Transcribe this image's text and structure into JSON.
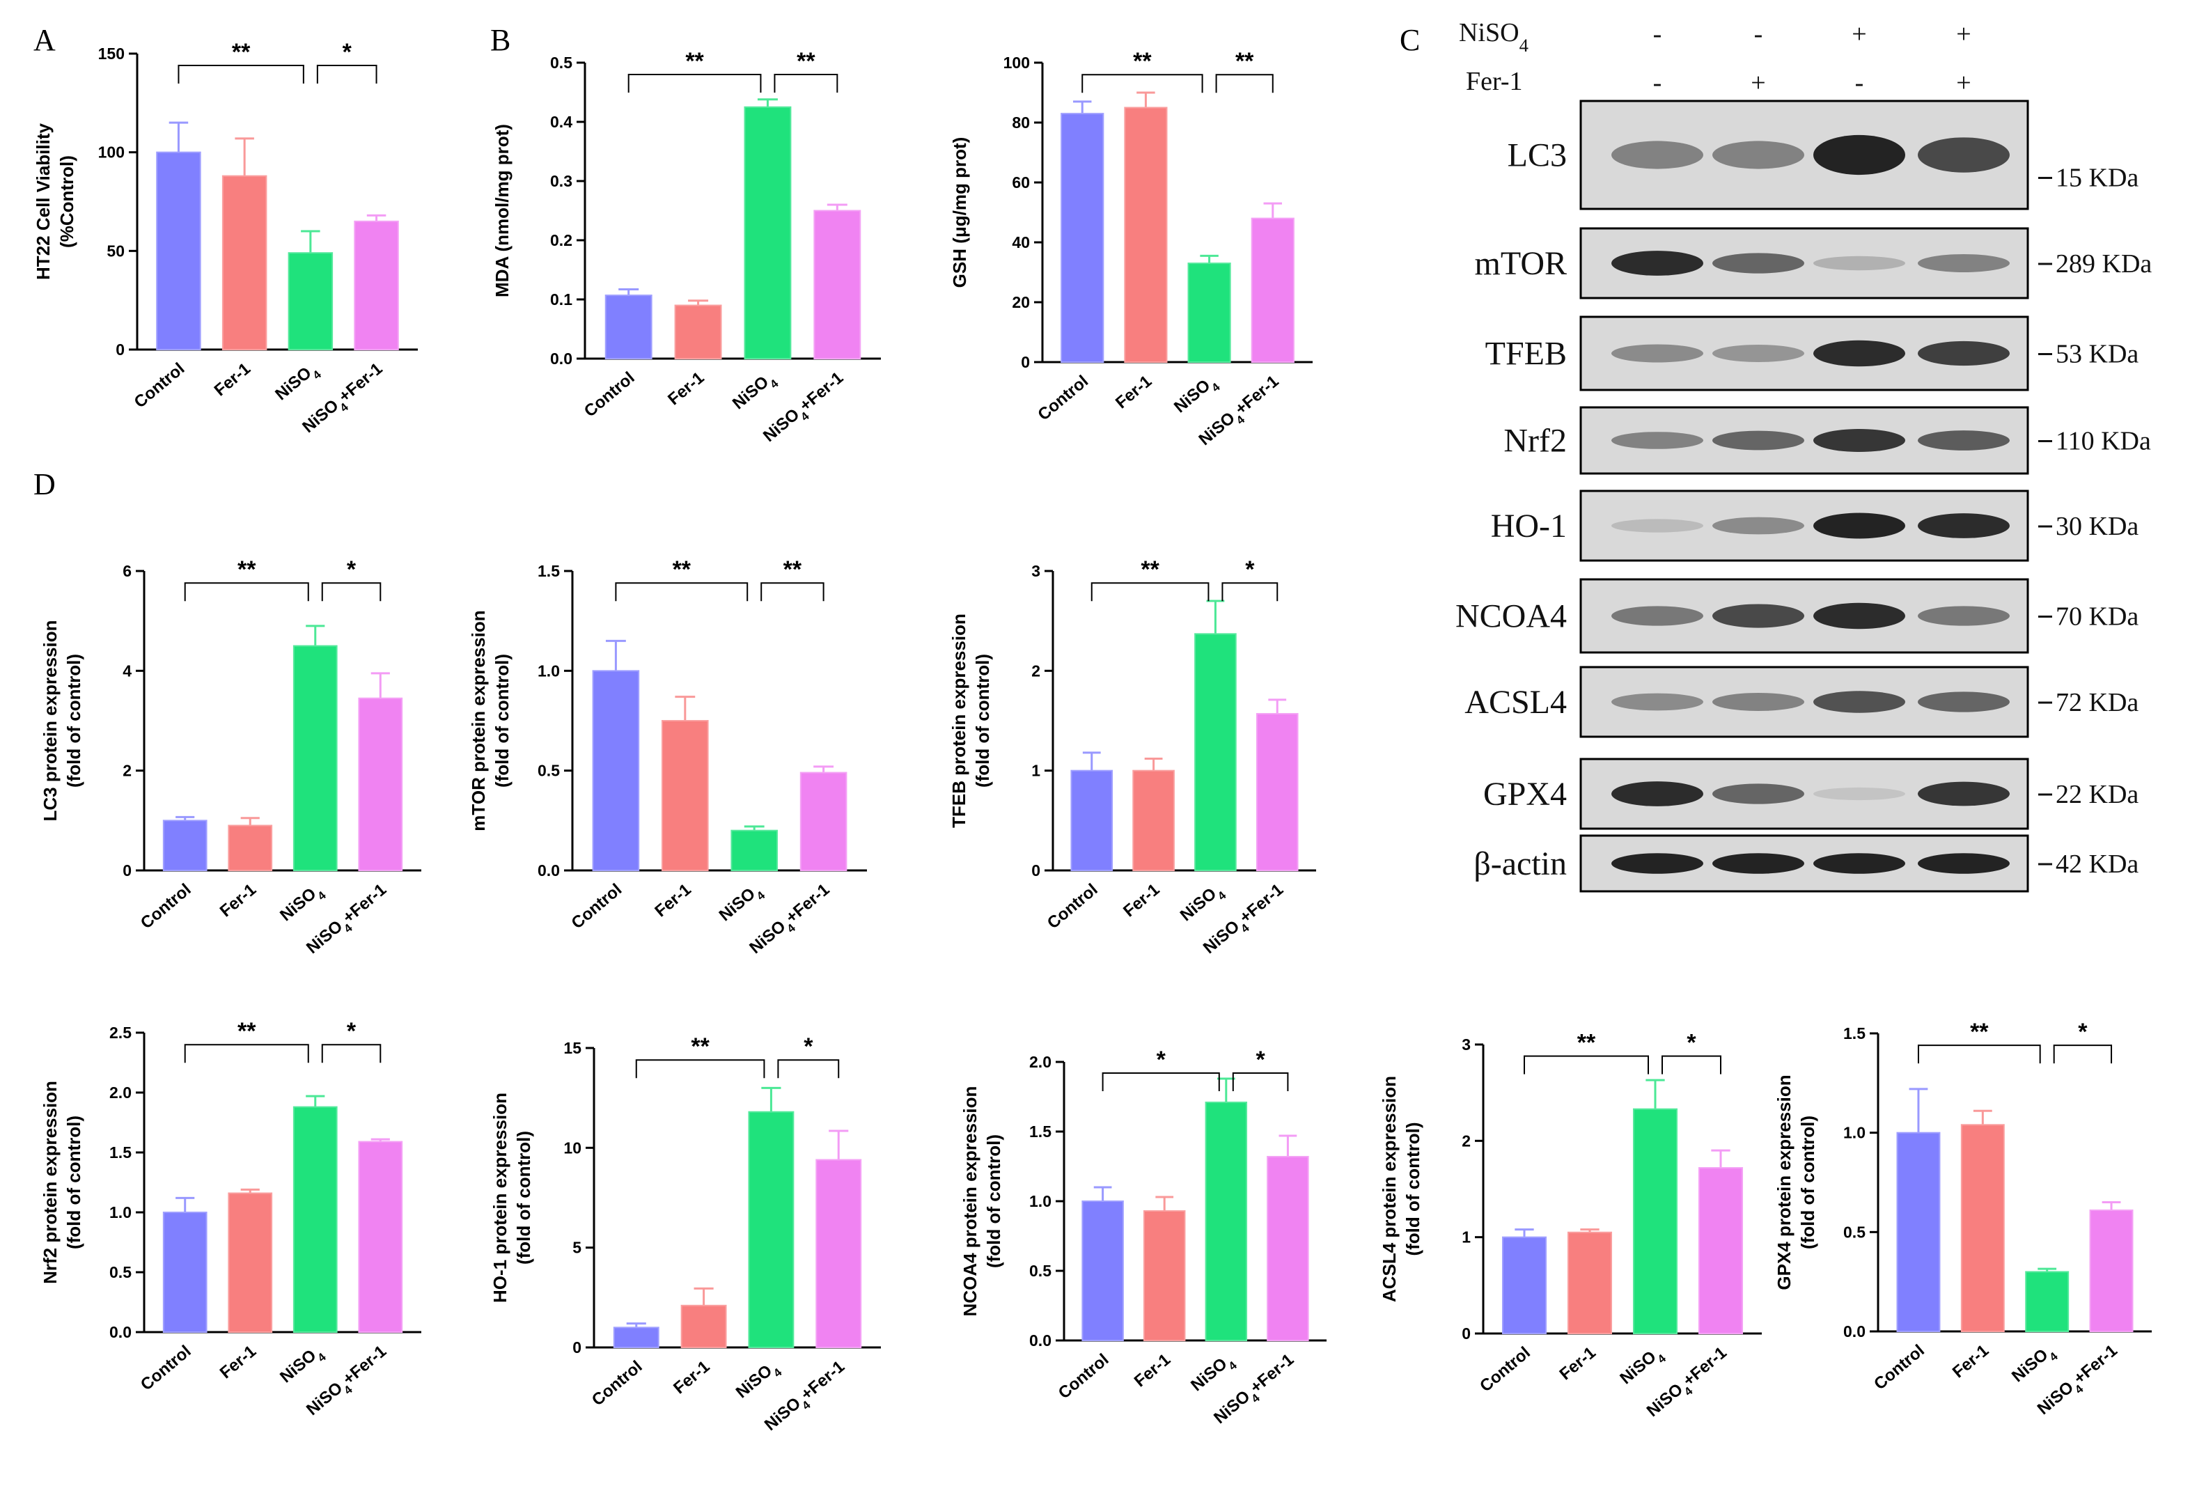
{
  "panel_labels": {
    "A": "A",
    "B": "B",
    "C": "C",
    "D": "D"
  },
  "colors": {
    "Control": "#8080ff",
    "Fer-1": "#f87f7f",
    "NiSO4": "#1fe27c",
    "NiSO4+Fer-1": "#f083f2"
  },
  "chart_data": [
    {
      "id": "viability",
      "type": "bar",
      "ylabel": [
        "HT22 Cell Viability",
        "(%Control)"
      ],
      "categories": [
        "Control",
        "Fer-1",
        "NiSO4",
        "NiSO4+Fer-1"
      ],
      "values": [
        100,
        88,
        49,
        65
      ],
      "errors": [
        15,
        19,
        11,
        3
      ],
      "ylim": [
        0,
        150
      ],
      "yticks": [
        "0",
        "50",
        "100",
        "150"
      ],
      "sig": [
        {
          "from": 0,
          "to": 2,
          "text": "**"
        },
        {
          "from": 2,
          "to": 3,
          "text": "*"
        }
      ]
    },
    {
      "id": "mda",
      "type": "bar",
      "ylabel": [
        "MDA (nmol/mg prot)"
      ],
      "categories": [
        "Control",
        "Fer-1",
        "NiSO4",
        "NiSO4+Fer-1"
      ],
      "values": [
        0.107,
        0.09,
        0.425,
        0.25
      ],
      "errors": [
        0.01,
        0.008,
        0.013,
        0.01
      ],
      "ylim": [
        0,
        0.5
      ],
      "yticks": [
        "0.0",
        "0.1",
        "0.2",
        "0.3",
        "0.4",
        "0.5"
      ],
      "sig": [
        {
          "from": 0,
          "to": 2,
          "text": "**"
        },
        {
          "from": 2,
          "to": 3,
          "text": "**"
        }
      ]
    },
    {
      "id": "gsh",
      "type": "bar",
      "ylabel": [
        "GSH (μg/mg prot)"
      ],
      "categories": [
        "Control",
        "Fer-1",
        "NiSO4",
        "NiSO4+Fer-1"
      ],
      "values": [
        83,
        85,
        33,
        48
      ],
      "errors": [
        4,
        5,
        2.5,
        5
      ],
      "ylim": [
        0,
        100
      ],
      "yticks": [
        "0",
        "20",
        "40",
        "60",
        "80",
        "100"
      ],
      "sig": [
        {
          "from": 0,
          "to": 2,
          "text": "**"
        },
        {
          "from": 2,
          "to": 3,
          "text": "**"
        }
      ]
    },
    {
      "id": "lc3",
      "type": "bar",
      "ylabel": [
        "LC3 protein expression",
        "(fold of control)"
      ],
      "categories": [
        "Control",
        "Fer-1",
        "NiSO4",
        "NiSO4+Fer-1"
      ],
      "values": [
        1.0,
        0.9,
        4.5,
        3.45
      ],
      "errors": [
        0.07,
        0.15,
        0.4,
        0.5
      ],
      "ylim": [
        0,
        6
      ],
      "yticks": [
        "0",
        "2",
        "4",
        "6"
      ],
      "sig": [
        {
          "from": 0,
          "to": 2,
          "text": "**"
        },
        {
          "from": 2,
          "to": 3,
          "text": "*"
        }
      ]
    },
    {
      "id": "mtor",
      "type": "bar",
      "ylabel": [
        "mTOR protein expression",
        "(fold of control)"
      ],
      "categories": [
        "Control",
        "Fer-1",
        "NiSO4",
        "NiSO4+Fer-1"
      ],
      "values": [
        1.0,
        0.75,
        0.2,
        0.49
      ],
      "errors": [
        0.15,
        0.12,
        0.02,
        0.03
      ],
      "ylim": [
        0,
        1.5
      ],
      "yticks": [
        "0.0",
        "0.5",
        "1.0",
        "1.5"
      ],
      "sig": [
        {
          "from": 0,
          "to": 2,
          "text": "**"
        },
        {
          "from": 2,
          "to": 3,
          "text": "**"
        }
      ]
    },
    {
      "id": "tfeb",
      "type": "bar",
      "ylabel": [
        "TFEB protein expression",
        "(fold of control)"
      ],
      "categories": [
        "Control",
        "Fer-1",
        "NiSO4",
        "NiSO4+Fer-1"
      ],
      "values": [
        1.0,
        1.0,
        2.37,
        1.57
      ],
      "errors": [
        0.18,
        0.12,
        0.33,
        0.14
      ],
      "ylim": [
        0,
        3
      ],
      "yticks": [
        "0",
        "1",
        "2",
        "3"
      ],
      "sig": [
        {
          "from": 0,
          "to": 2,
          "text": "**"
        },
        {
          "from": 2,
          "to": 3,
          "text": "*"
        }
      ]
    },
    {
      "id": "nrf2",
      "type": "bar",
      "ylabel": [
        "Nrf2 protein expression",
        "(fold of control)"
      ],
      "categories": [
        "Control",
        "Fer-1",
        "NiSO4",
        "NiSO4+Fer-1"
      ],
      "values": [
        1.0,
        1.16,
        1.88,
        1.59
      ],
      "errors": [
        0.12,
        0.03,
        0.09,
        0.02
      ],
      "ylim": [
        0,
        2.5
      ],
      "yticks": [
        "0.0",
        "0.5",
        "1.0",
        "1.5",
        "2.0",
        "2.5"
      ],
      "sig": [
        {
          "from": 0,
          "to": 2,
          "text": "**"
        },
        {
          "from": 2,
          "to": 3,
          "text": "*"
        }
      ]
    },
    {
      "id": "ho1",
      "type": "bar",
      "ylabel": [
        "HO-1 protein expression",
        "(fold of control)"
      ],
      "categories": [
        "Control",
        "Fer-1",
        "NiSO4",
        "NiSO4+Fer-1"
      ],
      "values": [
        1.0,
        2.1,
        11.8,
        9.4
      ],
      "errors": [
        0.2,
        0.85,
        1.2,
        1.45
      ],
      "ylim": [
        0,
        15
      ],
      "yticks": [
        "0",
        "5",
        "10",
        "15"
      ],
      "sig": [
        {
          "from": 0,
          "to": 2,
          "text": "**"
        },
        {
          "from": 2,
          "to": 3,
          "text": "*"
        }
      ]
    },
    {
      "id": "ncoa4",
      "type": "bar",
      "ylabel": [
        "NCOA4 protein expression",
        "(fold of control)"
      ],
      "categories": [
        "Control",
        "Fer-1",
        "NiSO4",
        "NiSO4+Fer-1"
      ],
      "values": [
        1.0,
        0.93,
        1.71,
        1.32
      ],
      "errors": [
        0.1,
        0.1,
        0.17,
        0.15
      ],
      "ylim": [
        0,
        2.0
      ],
      "yticks": [
        "0.0",
        "0.5",
        "1.0",
        "1.5",
        "2.0"
      ],
      "sig": [
        {
          "from": 0,
          "to": 2,
          "text": "*"
        },
        {
          "from": 2,
          "to": 3,
          "text": "*"
        }
      ]
    },
    {
      "id": "acsl4",
      "type": "bar",
      "ylabel": [
        "ACSL4 protein expression",
        "(fold of control)"
      ],
      "categories": [
        "Control",
        "Fer-1",
        "NiSO4",
        "NiSO4+Fer-1"
      ],
      "values": [
        1.0,
        1.05,
        2.33,
        1.72
      ],
      "errors": [
        0.08,
        0.03,
        0.3,
        0.18
      ],
      "ylim": [
        0,
        3
      ],
      "yticks": [
        "0",
        "1",
        "2",
        "3"
      ],
      "sig": [
        {
          "from": 0,
          "to": 2,
          "text": "**"
        },
        {
          "from": 2,
          "to": 3,
          "text": "*"
        }
      ]
    },
    {
      "id": "gpx4",
      "type": "bar",
      "ylabel": [
        "GPX4 protein expression",
        "(fold of control)"
      ],
      "categories": [
        "Control",
        "Fer-1",
        "NiSO4",
        "NiSO4+Fer-1"
      ],
      "values": [
        1.0,
        1.04,
        0.3,
        0.61
      ],
      "errors": [
        0.22,
        0.07,
        0.015,
        0.04
      ],
      "ylim": [
        0,
        1.5
      ],
      "yticks": [
        "0.0",
        "0.5",
        "1.0",
        "1.5"
      ],
      "sig": [
        {
          "from": 0,
          "to": 2,
          "text": "**"
        },
        {
          "from": 2,
          "to": 3,
          "text": "*"
        }
      ]
    }
  ],
  "western_blot": {
    "treatments": [
      {
        "name": "NiSO4",
        "signs": [
          "-",
          "-",
          "+",
          "+"
        ]
      },
      {
        "name": "Fer-1",
        "signs": [
          "-",
          "+",
          "-",
          "+"
        ]
      }
    ],
    "rows": [
      {
        "protein": "LC3",
        "kda": "15 KDa",
        "intensity": [
          0.45,
          0.45,
          0.95,
          0.75
        ]
      },
      {
        "protein": "mTOR",
        "kda": "289 KDa",
        "intensity": [
          0.9,
          0.6,
          0.2,
          0.45
        ]
      },
      {
        "protein": "TFEB",
        "kda": "53 KDa",
        "intensity": [
          0.4,
          0.35,
          0.9,
          0.8
        ]
      },
      {
        "protein": "Nrf2",
        "kda": "110 KDa",
        "intensity": [
          0.45,
          0.6,
          0.85,
          0.65
        ]
      },
      {
        "protein": "HO-1",
        "kda": "30 KDa",
        "intensity": [
          0.15,
          0.4,
          0.95,
          0.9
        ]
      },
      {
        "protein": "NCOA4",
        "kda": "70 KDa",
        "intensity": [
          0.5,
          0.75,
          0.9,
          0.5
        ]
      },
      {
        "protein": "ACSL4",
        "kda": "72 KDa",
        "intensity": [
          0.4,
          0.45,
          0.7,
          0.6
        ]
      },
      {
        "protein": "GPX4",
        "kda": "22 KDa",
        "intensity": [
          0.9,
          0.6,
          0.1,
          0.85
        ]
      },
      {
        "protein": "β-actin",
        "kda": "42 KDa",
        "intensity": [
          0.95,
          0.95,
          0.95,
          0.95
        ]
      }
    ]
  }
}
